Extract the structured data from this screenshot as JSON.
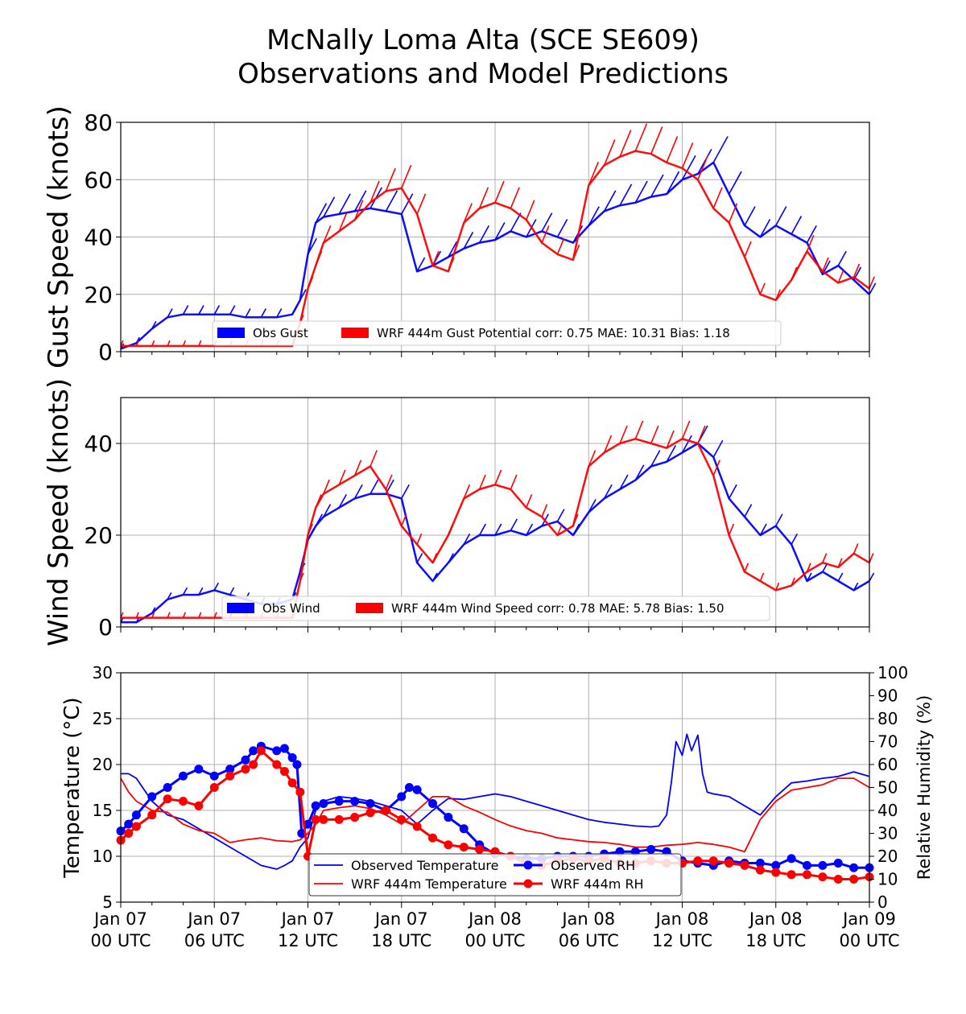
{
  "figure": {
    "title_line1": "McNally Loma Alta (SCE SE609)",
    "title_line2": "Observations and Model Predictions"
  },
  "x_axis": {
    "range_hours": [
      0,
      48
    ],
    "ticks": [
      {
        "hour": 0,
        "line1": "Jan 07",
        "line2": "00 UTC"
      },
      {
        "hour": 6,
        "line1": "Jan 07",
        "line2": "06 UTC"
      },
      {
        "hour": 12,
        "line1": "Jan 07",
        "line2": "12 UTC"
      },
      {
        "hour": 18,
        "line1": "Jan 07",
        "line2": "18 UTC"
      },
      {
        "hour": 24,
        "line1": "Jan 08",
        "line2": "00 UTC"
      },
      {
        "hour": 30,
        "line1": "Jan 08",
        "line2": "06 UTC"
      },
      {
        "hour": 36,
        "line1": "Jan 08",
        "line2": "12 UTC"
      },
      {
        "hour": 42,
        "line1": "Jan 08",
        "line2": "18 UTC"
      },
      {
        "hour": 48,
        "line1": "Jan 09",
        "line2": "00 UTC"
      }
    ]
  },
  "colors": {
    "observed": "#0000ff",
    "model": "#ff0000",
    "grid": "#b0b0b0"
  },
  "chart_data": [
    {
      "type": "line",
      "ylabel": "Gust Speed (knots)",
      "ylim": [
        0,
        80
      ],
      "yticks": [
        0,
        20,
        40,
        60,
        80
      ],
      "legend_location": "lower center",
      "series": [
        {
          "name": "Obs Gust",
          "color": "#0000ff",
          "x": [
            0,
            1,
            2,
            3,
            4,
            5,
            6,
            7,
            8,
            9,
            10,
            11,
            11.5,
            12,
            12.5,
            13,
            14,
            15,
            16,
            17,
            18,
            19,
            20,
            21,
            22,
            23,
            24,
            25,
            26,
            27,
            28,
            29,
            30,
            31,
            32,
            33,
            34,
            35,
            36,
            37,
            38,
            39,
            40,
            41,
            42,
            43,
            44,
            45,
            46,
            47,
            48
          ],
          "y": [
            1,
            3,
            8,
            12,
            13,
            13,
            13,
            13,
            12,
            12,
            12,
            13,
            18,
            34,
            45,
            47,
            48,
            49,
            50,
            49,
            48,
            28,
            30,
            33,
            36,
            38,
            39,
            42,
            40,
            42,
            40,
            38,
            44,
            49,
            51,
            52,
            54,
            55,
            60,
            62,
            66,
            55,
            44,
            40,
            44,
            41,
            38,
            27,
            30,
            25,
            20
          ]
        },
        {
          "name": "WRF 444m Gust Potential corr: 0.75 MAE: 10.31 Bias: 1.18",
          "color": "#ff0000",
          "x": [
            0,
            1,
            2,
            3,
            4,
            5,
            6,
            7,
            8,
            9,
            10,
            11,
            11.5,
            12,
            12.5,
            13,
            14,
            15,
            16,
            17,
            18,
            19,
            20,
            21,
            22,
            23,
            24,
            25,
            26,
            27,
            28,
            29,
            30,
            31,
            32,
            33,
            34,
            35,
            36,
            37,
            38,
            39,
            40,
            41,
            42,
            43,
            44,
            45,
            46,
            47,
            48
          ],
          "y": [
            2,
            2,
            2,
            2,
            2,
            2,
            2,
            2,
            2,
            2,
            2,
            2,
            10,
            22,
            30,
            38,
            42,
            46,
            52,
            56,
            57,
            48,
            30,
            28,
            45,
            50,
            52,
            50,
            46,
            38,
            34,
            32,
            58,
            65,
            68,
            70,
            69,
            66,
            64,
            60,
            50,
            45,
            33,
            20,
            18,
            25,
            35,
            28,
            24,
            26,
            22
          ]
        }
      ]
    },
    {
      "type": "line",
      "ylabel": "Wind Speed (knots)",
      "ylim": [
        0,
        50
      ],
      "yticks": [
        0,
        20,
        40
      ],
      "legend_location": "lower center",
      "series": [
        {
          "name": "Obs Wind",
          "color": "#0000ff",
          "x": [
            0,
            1,
            2,
            3,
            4,
            5,
            6,
            7,
            8,
            9,
            10,
            11,
            11.5,
            12,
            12.5,
            13,
            14,
            15,
            16,
            17,
            18,
            19,
            20,
            21,
            22,
            23,
            24,
            25,
            26,
            27,
            28,
            29,
            30,
            31,
            32,
            33,
            34,
            35,
            36,
            37,
            38,
            39,
            40,
            41,
            42,
            43,
            44,
            45,
            46,
            47,
            48
          ],
          "y": [
            1,
            1,
            3,
            6,
            7,
            7,
            8,
            7,
            6,
            5,
            5,
            6,
            12,
            19,
            22,
            24,
            26,
            28,
            29,
            29,
            28,
            14,
            10,
            14,
            18,
            20,
            20,
            21,
            20,
            22,
            23,
            20,
            25,
            28,
            30,
            32,
            35,
            36,
            38,
            40,
            37,
            28,
            24,
            20,
            22,
            18,
            10,
            12,
            10,
            8,
            10
          ]
        },
        {
          "name": "WRF 444m Wind Speed corr: 0.78 MAE: 5.78 Bias: 1.50",
          "color": "#ff0000",
          "x": [
            0,
            1,
            2,
            3,
            4,
            5,
            6,
            7,
            8,
            9,
            10,
            11,
            11.5,
            12,
            12.5,
            13,
            14,
            15,
            16,
            17,
            18,
            19,
            20,
            21,
            22,
            23,
            24,
            25,
            26,
            27,
            28,
            29,
            30,
            31,
            32,
            33,
            34,
            35,
            36,
            37,
            38,
            39,
            40,
            41,
            42,
            43,
            44,
            45,
            46,
            47,
            48
          ],
          "y": [
            2,
            2,
            2,
            2,
            2,
            2,
            2,
            2,
            2,
            2,
            2,
            2,
            10,
            20,
            26,
            29,
            31,
            33,
            35,
            30,
            22,
            18,
            14,
            20,
            28,
            30,
            31,
            30,
            26,
            24,
            20,
            22,
            35,
            38,
            40,
            41,
            40,
            39,
            41,
            40,
            33,
            20,
            12,
            10,
            8,
            9,
            12,
            14,
            13,
            16,
            14
          ]
        }
      ]
    },
    {
      "type": "line",
      "ylabel": "Temperature (°C)",
      "ylim": [
        5,
        30
      ],
      "yticks": [
        5,
        10,
        15,
        20,
        25,
        30
      ],
      "y2label": "Relative Humidity (%)",
      "y2lim": [
        0,
        100
      ],
      "y2ticks": [
        0,
        10,
        20,
        30,
        40,
        50,
        60,
        70,
        80,
        90,
        100
      ],
      "legend_location": "lower center",
      "series": [
        {
          "name": "Observed Temperature",
          "color": "#0000ff",
          "axis": "left",
          "marker": "none",
          "x": [
            0,
            0.5,
            1,
            2,
            3,
            4,
            5,
            6,
            7,
            8,
            9,
            10,
            10.5,
            11,
            11.5,
            12,
            12.5,
            13,
            14,
            15,
            16,
            17,
            18,
            19,
            20,
            21,
            22,
            23,
            24,
            25,
            26,
            27,
            28,
            29,
            30,
            31,
            32,
            33,
            34,
            34.5,
            35,
            35.3,
            35.6,
            36,
            36.3,
            36.6,
            37,
            37.3,
            37.6,
            38,
            39,
            40,
            41,
            42,
            43,
            44,
            45,
            46,
            47,
            48
          ],
          "y": [
            19,
            19,
            18.5,
            16,
            14.5,
            14,
            13,
            12,
            11,
            10,
            9,
            8.6,
            9,
            9.5,
            11,
            12,
            15,
            16,
            16.5,
            16.3,
            16,
            15.5,
            15,
            13.5,
            15,
            16.3,
            16.2,
            16.5,
            16.8,
            16.5,
            16,
            15.5,
            15,
            14.5,
            14,
            13.7,
            13.5,
            13.3,
            13.2,
            13.3,
            14.5,
            18,
            22.5,
            21,
            23.3,
            21.5,
            23.2,
            19,
            17,
            16.8,
            16.5,
            15.5,
            14.5,
            16.5,
            18,
            18.2,
            18.5,
            18.7,
            19.2,
            18.7
          ]
        },
        {
          "name": "WRF 444m Temperature",
          "color": "#ff0000",
          "axis": "left",
          "marker": "none",
          "x": [
            0,
            0.5,
            1,
            2,
            3,
            4,
            5,
            6,
            7,
            8,
            9,
            10,
            11,
            11.5,
            12,
            12.5,
            13,
            14,
            15,
            16,
            17,
            18,
            19,
            20,
            21,
            22,
            23,
            24,
            25,
            26,
            27,
            28,
            29,
            30,
            31,
            32,
            33,
            34,
            35,
            36,
            37,
            38,
            39,
            40,
            41,
            42,
            43,
            44,
            45,
            46,
            47,
            48
          ],
          "y": [
            18.5,
            17,
            16,
            15,
            14.8,
            13.5,
            12.8,
            12.5,
            11.5,
            11.8,
            12,
            11.7,
            11.6,
            11.8,
            12.5,
            13.5,
            15,
            15.3,
            15.5,
            15.2,
            14.5,
            13.5,
            15,
            16.5,
            16.5,
            15.5,
            14.8,
            14,
            13.3,
            12.8,
            12.5,
            12,
            11.8,
            11.6,
            11.5,
            11.3,
            11,
            11,
            11.2,
            11.3,
            11.5,
            11.3,
            11,
            10.5,
            14,
            16,
            17.2,
            17.5,
            17.8,
            18.5,
            18.5,
            17.5
          ]
        },
        {
          "name": "Observed RH",
          "color": "#0000ff",
          "axis": "right",
          "marker": "circle",
          "x": [
            0,
            0.5,
            1,
            2,
            3,
            4,
            5,
            6,
            7,
            8,
            8.5,
            9,
            10,
            10.5,
            11,
            11.3,
            11.6,
            12,
            12.5,
            13,
            14,
            15,
            16,
            17,
            18,
            18.5,
            19,
            20,
            21,
            22,
            23,
            24,
            25,
            26,
            27,
            28,
            29,
            30,
            31,
            32,
            33,
            34,
            35,
            36,
            37,
            38,
            39,
            40,
            41,
            42,
            43,
            44,
            45,
            46,
            47,
            48
          ],
          "y": [
            31,
            34,
            38,
            46,
            50,
            55,
            58,
            55,
            58,
            62,
            66,
            68,
            66,
            67,
            63,
            60,
            30,
            34,
            42,
            43,
            44,
            44,
            43,
            40,
            46,
            50,
            49,
            43,
            37,
            32,
            25,
            21,
            20,
            19,
            19,
            20,
            20,
            20,
            21,
            22,
            22,
            23,
            22,
            18,
            17,
            16,
            18,
            17,
            17,
            16,
            19,
            16,
            16,
            17,
            15,
            15
          ]
        },
        {
          "name": "WRF 444m RH",
          "color": "#ff0000",
          "axis": "right",
          "marker": "circle",
          "x": [
            0,
            0.5,
            1,
            2,
            3,
            4,
            5,
            6,
            7,
            8,
            8.5,
            9,
            10,
            10.5,
            11,
            11.5,
            12,
            12.5,
            13,
            14,
            15,
            16,
            17,
            18,
            19,
            20,
            21,
            22,
            23,
            24,
            25,
            26,
            27,
            28,
            29,
            30,
            31,
            32,
            33,
            34,
            35,
            36,
            37,
            38,
            39,
            40,
            41,
            42,
            43,
            44,
            45,
            46,
            47,
            48
          ],
          "y": [
            27,
            30,
            33,
            38,
            45,
            44,
            42,
            50,
            55,
            58,
            60,
            66,
            60,
            57,
            52,
            48,
            20,
            36,
            36,
            36,
            37,
            39,
            40,
            36,
            33,
            28,
            25,
            24,
            23,
            22,
            20,
            17,
            16,
            18,
            19,
            18,
            19,
            17,
            17,
            18,
            17,
            17,
            18,
            18,
            17,
            16,
            14,
            13,
            12,
            12,
            11,
            10,
            10,
            11
          ]
        }
      ]
    }
  ]
}
